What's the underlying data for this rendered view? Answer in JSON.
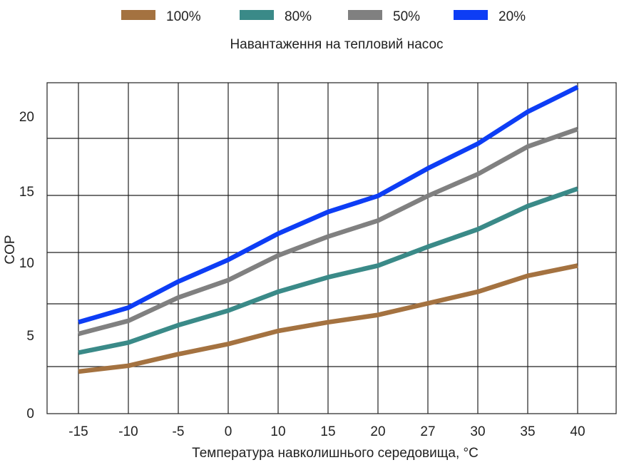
{
  "chart_data": {
    "type": "line",
    "title": "",
    "legend_title": "Навантаження на тепловий насос",
    "legend_position": "top",
    "xlabel": "Температура навколишнього середовища, °C",
    "ylabel": "COP",
    "categories": [
      "-15",
      "-10",
      "-5",
      "0",
      "10",
      "15",
      "20",
      "27",
      "30",
      "35",
      "40"
    ],
    "y_tick_labels": [
      "0",
      "5",
      "10",
      "15",
      "20"
    ],
    "y_tick_values": [
      0,
      5,
      10,
      15,
      20
    ],
    "ylim": [
      0,
      22.8
    ],
    "grid": true,
    "series": [
      {
        "name": "100%",
        "color": "#A47240",
        "values": [
          2.9,
          3.3,
          4.1,
          4.8,
          5.7,
          6.3,
          6.8,
          7.6,
          8.4,
          9.5,
          10.2
        ]
      },
      {
        "name": "80%",
        "color": "#3A8A88",
        "values": [
          4.2,
          4.9,
          6.1,
          7.1,
          8.4,
          9.4,
          10.2,
          11.5,
          12.7,
          14.3,
          15.5
        ]
      },
      {
        "name": "50%",
        "color": "#808080",
        "values": [
          5.5,
          6.4,
          8.0,
          9.2,
          10.9,
          12.2,
          13.3,
          15.0,
          16.5,
          18.4,
          19.6
        ]
      },
      {
        "name": "20%",
        "color": "#0D3DF5",
        "values": [
          6.3,
          7.3,
          9.1,
          10.6,
          12.4,
          13.9,
          15.0,
          16.9,
          18.6,
          20.8,
          22.5
        ]
      }
    ]
  }
}
